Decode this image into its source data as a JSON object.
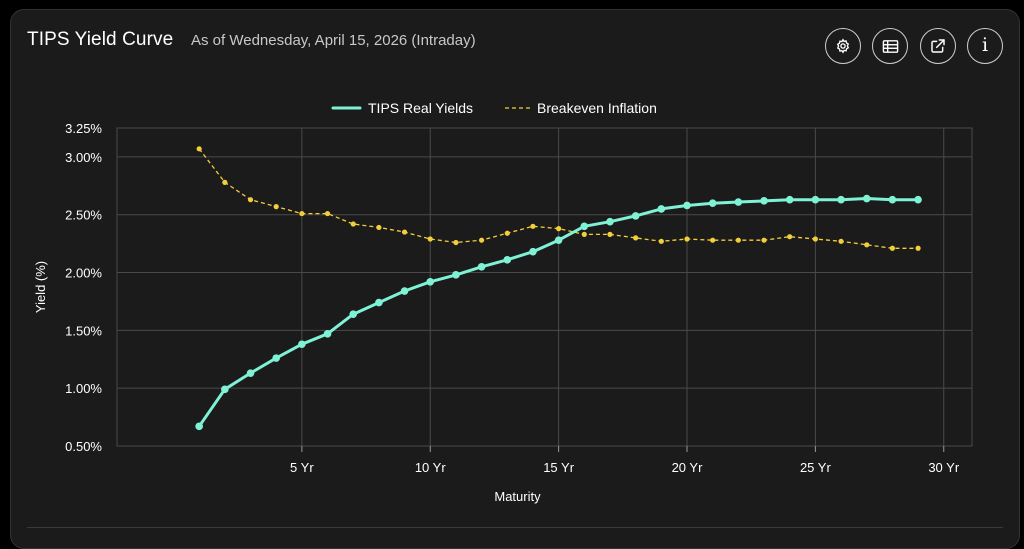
{
  "header": {
    "title": "TIPS Yield Curve",
    "subtitle": "As of Wednesday, April 15, 2026 (Intraday)"
  },
  "toolbar": {
    "settings_icon": "gear-icon",
    "table_icon": "table-icon",
    "external_icon": "external-link-icon",
    "info_icon": "info-icon",
    "info_glyph": "i"
  },
  "colors": {
    "real_yields": "#7ff2d6",
    "breakeven": "#f2cf3a",
    "grid": "#4a4a4a",
    "axis": "#9a9a9a"
  },
  "chart_data": {
    "type": "line",
    "title": "TIPS Yield Curve",
    "xlabel": "Maturity",
    "ylabel": "Yield (%)",
    "xlim": [
      0,
      30
    ],
    "ylim": [
      0.5,
      3.25
    ],
    "x_ticks": [
      5,
      10,
      15,
      20,
      25,
      30
    ],
    "x_tick_labels": [
      "5 Yr",
      "10 Yr",
      "15 Yr",
      "20 Yr",
      "25 Yr",
      "30 Yr"
    ],
    "y_ticks": [
      0.5,
      1.0,
      1.5,
      2.0,
      2.5,
      3.0,
      3.25
    ],
    "y_tick_labels": [
      "0.50%",
      "1.00%",
      "1.50%",
      "2.00%",
      "2.50%",
      "3.00%",
      "3.25%"
    ],
    "grid": true,
    "legend_position": "top-center",
    "x": [
      1,
      2,
      3,
      4,
      5,
      6,
      7,
      8,
      9,
      10,
      11,
      12,
      13,
      14,
      15,
      16,
      17,
      18,
      19,
      20,
      21,
      22,
      23,
      24,
      25,
      26,
      27,
      28,
      29
    ],
    "series": [
      {
        "name": "TIPS Real Yields",
        "style": "solid",
        "values": [
          0.67,
          0.99,
          1.13,
          1.26,
          1.38,
          1.47,
          1.64,
          1.74,
          1.84,
          1.92,
          1.98,
          2.05,
          2.11,
          2.18,
          2.28,
          2.4,
          2.44,
          2.49,
          2.55,
          2.58,
          2.6,
          2.61,
          2.62,
          2.63,
          2.63,
          2.63,
          2.64,
          2.63,
          2.63
        ]
      },
      {
        "name": "Breakeven Inflation",
        "style": "dashed",
        "values": [
          3.07,
          2.78,
          2.63,
          2.57,
          2.51,
          2.51,
          2.42,
          2.39,
          2.35,
          2.29,
          2.26,
          2.28,
          2.34,
          2.4,
          2.38,
          2.33,
          2.33,
          2.3,
          2.27,
          2.29,
          2.28,
          2.28,
          2.28,
          2.31,
          2.29,
          2.27,
          2.24,
          2.21,
          2.21
        ]
      }
    ]
  }
}
